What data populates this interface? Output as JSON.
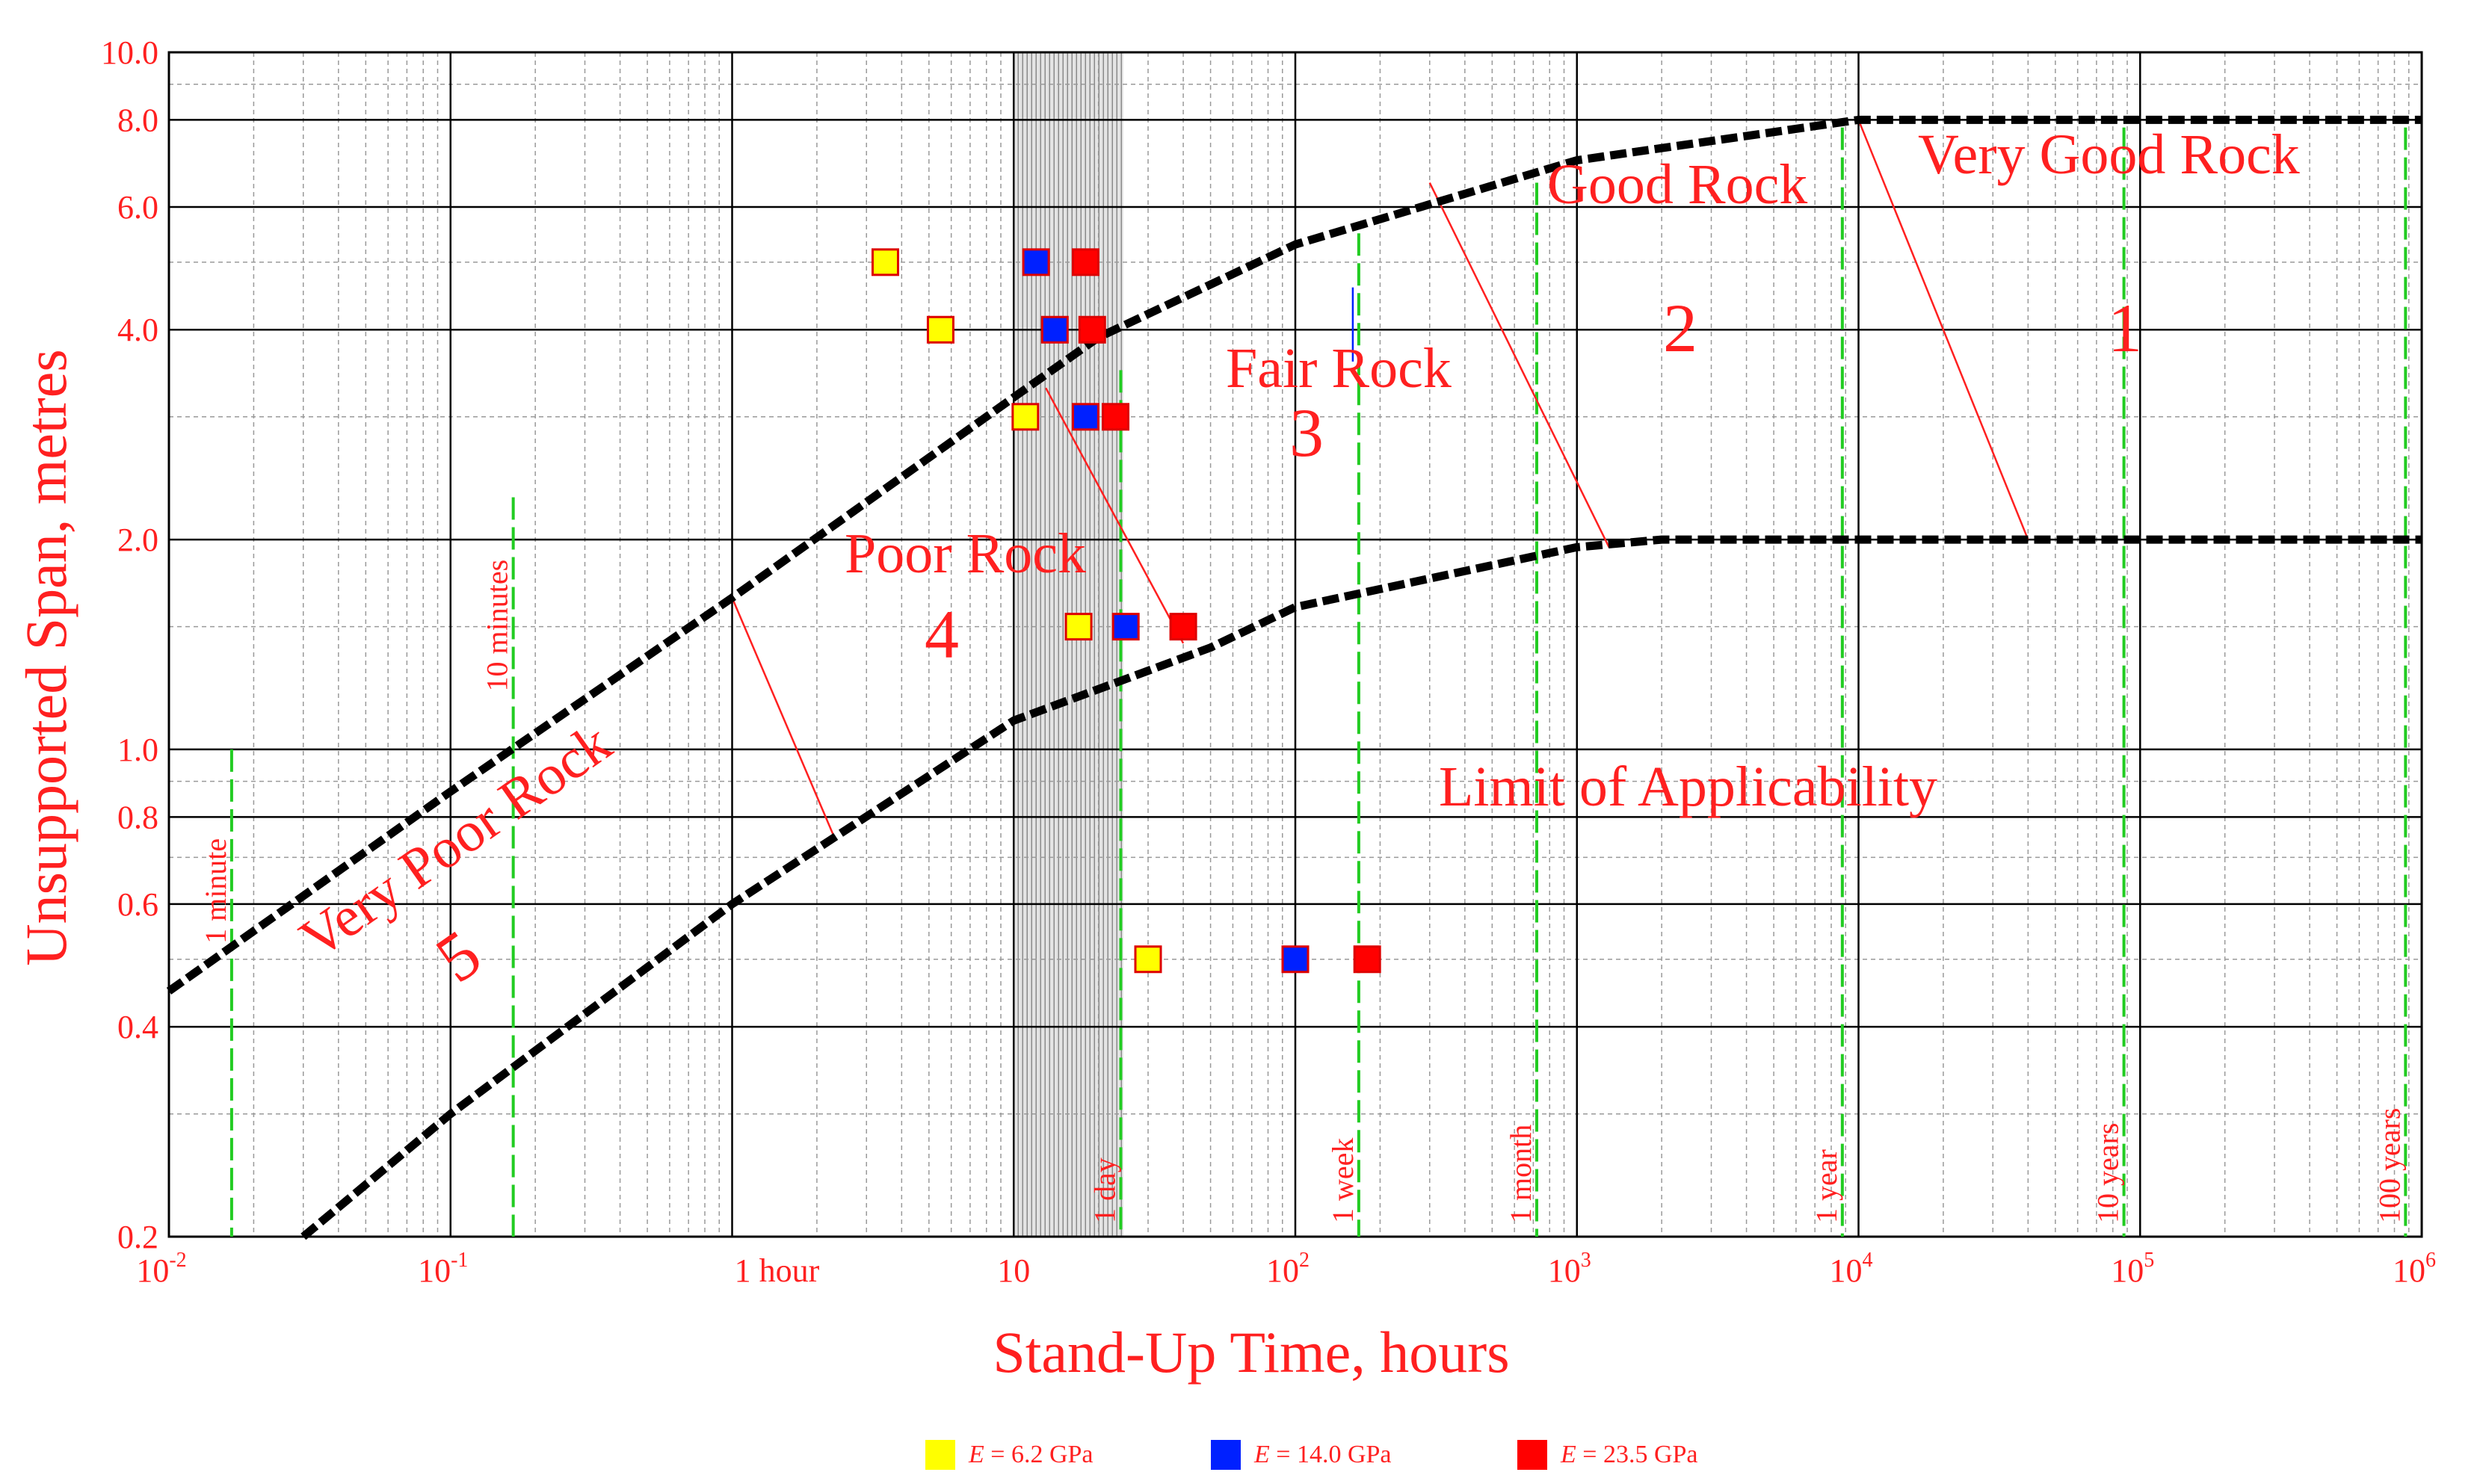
{
  "chart_data": {
    "type": "scatter",
    "xlabel": "Stand-Up Time, hours",
    "ylabel": "Unsupported Span, metres",
    "x_scale": "log",
    "y_scale": "log",
    "xlim": [
      0.01,
      1000000
    ],
    "ylim": [
      0.2,
      10.0
    ],
    "grid": true,
    "x_tick_labels": [
      {
        "base": "10",
        "exp": "-2",
        "value": 0.01
      },
      {
        "base": "10",
        "exp": "-1",
        "value": 0.1
      },
      {
        "base": "10",
        "exp": "",
        "value": 10
      },
      {
        "base": "10",
        "exp": "2",
        "value": 100
      },
      {
        "base": "10",
        "exp": "3",
        "value": 1000
      },
      {
        "base": "10",
        "exp": "4",
        "value": 10000
      },
      {
        "base": "10",
        "exp": "5",
        "value": 100000
      },
      {
        "base": "10",
        "exp": "6",
        "value": 1000000
      }
    ],
    "x_extra_labels": [
      {
        "text": "1 hour",
        "value": 1
      }
    ],
    "y_tick_labels": [
      {
        "text": "10.0",
        "value": 10
      },
      {
        "text": "8.0",
        "value": 8
      },
      {
        "text": "6.0",
        "value": 6
      },
      {
        "text": "4.0",
        "value": 4
      },
      {
        "text": "2.0",
        "value": 2
      },
      {
        "text": "1.0",
        "value": 1
      },
      {
        "text": "0.8",
        "value": 0.8
      },
      {
        "text": "0.6",
        "value": 0.6
      },
      {
        "text": "0.4",
        "value": 0.4
      },
      {
        "text": "0.2",
        "value": 0.2
      }
    ],
    "time_markers": [
      {
        "label": "1 minute",
        "x": 0.0167,
        "y_top": 1.0
      },
      {
        "label": "10 minutes",
        "x": 0.167,
        "y_top": 2.3
      },
      {
        "label": "1 day",
        "x": 24,
        "y_top": 3.5
      },
      {
        "label": "1 week",
        "x": 168,
        "y_top": 5.5
      },
      {
        "label": "1 month",
        "x": 720,
        "y_top": 6.5
      },
      {
        "label": "1 year",
        "x": 8760,
        "y_top": 7.8
      },
      {
        "label": "10 years",
        "x": 87600,
        "y_top": 7.8
      },
      {
        "label": "100 years",
        "x": 876000,
        "y_top": 7.8
      }
    ],
    "boundaries": [
      {
        "name": "upper",
        "points": [
          [
            0.01,
            0.45
          ],
          [
            0.1,
            0.87
          ],
          [
            1,
            1.65
          ],
          [
            10,
            3.2
          ],
          [
            20,
            3.9
          ],
          [
            100,
            5.3
          ],
          [
            1000,
            7.0
          ],
          [
            10000,
            8.0
          ],
          [
            1000000,
            8.0
          ]
        ]
      },
      {
        "name": "lower",
        "points": [
          [
            0.03,
            0.2
          ],
          [
            0.1,
            0.3
          ],
          [
            1,
            0.6
          ],
          [
            10,
            1.1
          ],
          [
            50,
            1.4
          ],
          [
            100,
            1.6
          ],
          [
            1000,
            1.95
          ],
          [
            2000,
            2.0
          ],
          [
            1000000,
            2.0
          ]
        ]
      }
    ],
    "class_dividers": [
      {
        "from": [
          1.0,
          1.65
        ],
        "to": [
          2.3,
          0.75
        ]
      },
      {
        "from": [
          13,
          3.3
        ],
        "to": [
          40,
          1.42
        ]
      },
      {
        "from": [
          300,
          6.5
        ],
        "to": [
          1300,
          1.95
        ]
      },
      {
        "from": [
          10000,
          8.0
        ],
        "to": [
          40000,
          2.0
        ]
      }
    ],
    "rock_classes": [
      {
        "label": "Very Good Rock",
        "number": "1"
      },
      {
        "label": "Good Rock",
        "number": "2"
      },
      {
        "label": "Fair Rock",
        "number": "3"
      },
      {
        "label": "Poor Rock",
        "number": "4"
      },
      {
        "label": "Very Poor Rock",
        "number": "5"
      }
    ],
    "annotation": "Limit of Applicability",
    "series": [
      {
        "name": "E = 6.2 GPa",
        "color": "#ffff00",
        "points": [
          [
            3.5,
            5.0
          ],
          [
            5.5,
            4.0
          ],
          [
            11,
            3.0
          ],
          [
            17,
            1.5
          ],
          [
            30,
            0.5
          ]
        ]
      },
      {
        "name": "E = 14.0 GPa",
        "color": "#0020ff",
        "points": [
          [
            12,
            5.0
          ],
          [
            14,
            4.0
          ],
          [
            18,
            3.0
          ],
          [
            25,
            1.5
          ],
          [
            100,
            0.5
          ]
        ]
      },
      {
        "name": "E = 23.5 GPa",
        "color": "#ff0000",
        "points": [
          [
            18,
            5.0
          ],
          [
            19,
            4.0
          ],
          [
            23,
            3.0
          ],
          [
            40,
            1.5
          ],
          [
            180,
            0.5
          ]
        ]
      }
    ]
  },
  "legend": [
    {
      "var": "E",
      "text": " = 6.2 GPa",
      "color": "#ffff00"
    },
    {
      "var": "E",
      "text": " = 14.0 GPa",
      "color": "#0020ff"
    },
    {
      "var": "E",
      "text": " = 23.5 GPa",
      "color": "#ff0000"
    }
  ]
}
